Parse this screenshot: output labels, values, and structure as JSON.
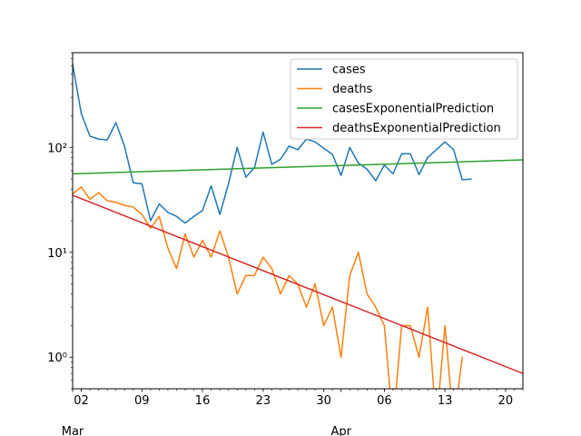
{
  "chart_data": {
    "type": "line",
    "title": "",
    "xlabel": "",
    "ylabel": "",
    "yscale": "log",
    "ylim": [
      0.5,
      800
    ],
    "xlim": [
      "2020-03-01",
      "2020-04-22"
    ],
    "grid": false,
    "legend_position": "top-right",
    "x_day_ticks": [
      "02",
      "09",
      "16",
      "23",
      "30",
      "06",
      "13",
      "20"
    ],
    "x_month_labels": [
      "Mar",
      "Apr"
    ],
    "y_tick_labels": [
      "10⁰",
      "10¹",
      "10²"
    ],
    "series": [
      {
        "name": "cases",
        "color": "#1f77b4",
        "points": [
          [
            "2020-03-01",
            620
          ],
          [
            "2020-03-02",
            210
          ],
          [
            "2020-03-03",
            128
          ],
          [
            "2020-03-04",
            120
          ],
          [
            "2020-03-05",
            118
          ],
          [
            "2020-03-06",
            172
          ],
          [
            "2020-03-07",
            102
          ],
          [
            "2020-03-08",
            46
          ],
          [
            "2020-03-09",
            45
          ],
          [
            "2020-03-10",
            20
          ],
          [
            "2020-03-11",
            29
          ],
          [
            "2020-03-12",
            24
          ],
          [
            "2020-03-13",
            22
          ],
          [
            "2020-03-14",
            19
          ],
          [
            "2020-03-15",
            22
          ],
          [
            "2020-03-16",
            25
          ],
          [
            "2020-03-17",
            43
          ],
          [
            "2020-03-18",
            23
          ],
          [
            "2020-03-19",
            45
          ],
          [
            "2020-03-20",
            100
          ],
          [
            "2020-03-21",
            52
          ],
          [
            "2020-03-22",
            64
          ],
          [
            "2020-03-23",
            140
          ],
          [
            "2020-03-24",
            69
          ],
          [
            "2020-03-25",
            77
          ],
          [
            "2020-03-26",
            103
          ],
          [
            "2020-03-27",
            95
          ],
          [
            "2020-03-28",
            120
          ],
          [
            "2020-03-29",
            113
          ],
          [
            "2020-03-30",
            98
          ],
          [
            "2020-03-31",
            86
          ],
          [
            "2020-04-01",
            54
          ],
          [
            "2020-04-02",
            100
          ],
          [
            "2020-04-03",
            71
          ],
          [
            "2020-04-04",
            62
          ],
          [
            "2020-04-05",
            48
          ],
          [
            "2020-04-06",
            68
          ],
          [
            "2020-04-07",
            56
          ],
          [
            "2020-04-08",
            87
          ],
          [
            "2020-04-09",
            87
          ],
          [
            "2020-04-10",
            55
          ],
          [
            "2020-04-11",
            80
          ],
          [
            "2020-04-12",
            95
          ],
          [
            "2020-04-13",
            113
          ],
          [
            "2020-04-14",
            95
          ],
          [
            "2020-04-15",
            49
          ],
          [
            "2020-04-16",
            50
          ]
        ]
      },
      {
        "name": "deaths",
        "color": "#ff7f0e",
        "points": [
          [
            "2020-03-01",
            36
          ],
          [
            "2020-03-02",
            42
          ],
          [
            "2020-03-03",
            32
          ],
          [
            "2020-03-04",
            37
          ],
          [
            "2020-03-05",
            31
          ],
          [
            "2020-03-06",
            30
          ],
          [
            "2020-03-07",
            28
          ],
          [
            "2020-03-08",
            27
          ],
          [
            "2020-03-09",
            23
          ],
          [
            "2020-03-10",
            17
          ],
          [
            "2020-03-11",
            22
          ],
          [
            "2020-03-12",
            11
          ],
          [
            "2020-03-13",
            7
          ],
          [
            "2020-03-14",
            15
          ],
          [
            "2020-03-15",
            9
          ],
          [
            "2020-03-16",
            13
          ],
          [
            "2020-03-17",
            9
          ],
          [
            "2020-03-18",
            16
          ],
          [
            "2020-03-19",
            9
          ],
          [
            "2020-03-20",
            4
          ],
          [
            "2020-03-21",
            6
          ],
          [
            "2020-03-22",
            6
          ],
          [
            "2020-03-23",
            9
          ],
          [
            "2020-03-24",
            7
          ],
          [
            "2020-03-25",
            4
          ],
          [
            "2020-03-26",
            6
          ],
          [
            "2020-03-27",
            5
          ],
          [
            "2020-03-28",
            3
          ],
          [
            "2020-03-29",
            5
          ],
          [
            "2020-03-30",
            2
          ],
          [
            "2020-03-31",
            3
          ],
          [
            "2020-04-01",
            1
          ],
          [
            "2020-04-02",
            6
          ],
          [
            "2020-04-03",
            10
          ],
          [
            "2020-04-04",
            4
          ],
          [
            "2020-04-05",
            3
          ],
          [
            "2020-04-06",
            2
          ],
          [
            "2020-04-07",
            0
          ],
          [
            "2020-04-08",
            2
          ],
          [
            "2020-04-09",
            2
          ],
          [
            "2020-04-10",
            1
          ],
          [
            "2020-04-11",
            3
          ],
          [
            "2020-04-12",
            0
          ],
          [
            "2020-04-13",
            2
          ],
          [
            "2020-04-14",
            0
          ],
          [
            "2020-04-15",
            1
          ]
        ]
      },
      {
        "name": "casesExponentialPrediction",
        "color": "#2ca02c",
        "points": [
          [
            "2020-03-01",
            56
          ],
          [
            "2020-04-22",
            76
          ]
        ]
      },
      {
        "name": "deathsExponentialPrediction",
        "color": "#d62728",
        "points": [
          [
            "2020-03-01",
            35
          ],
          [
            "2020-04-22",
            0.7
          ]
        ]
      }
    ]
  }
}
